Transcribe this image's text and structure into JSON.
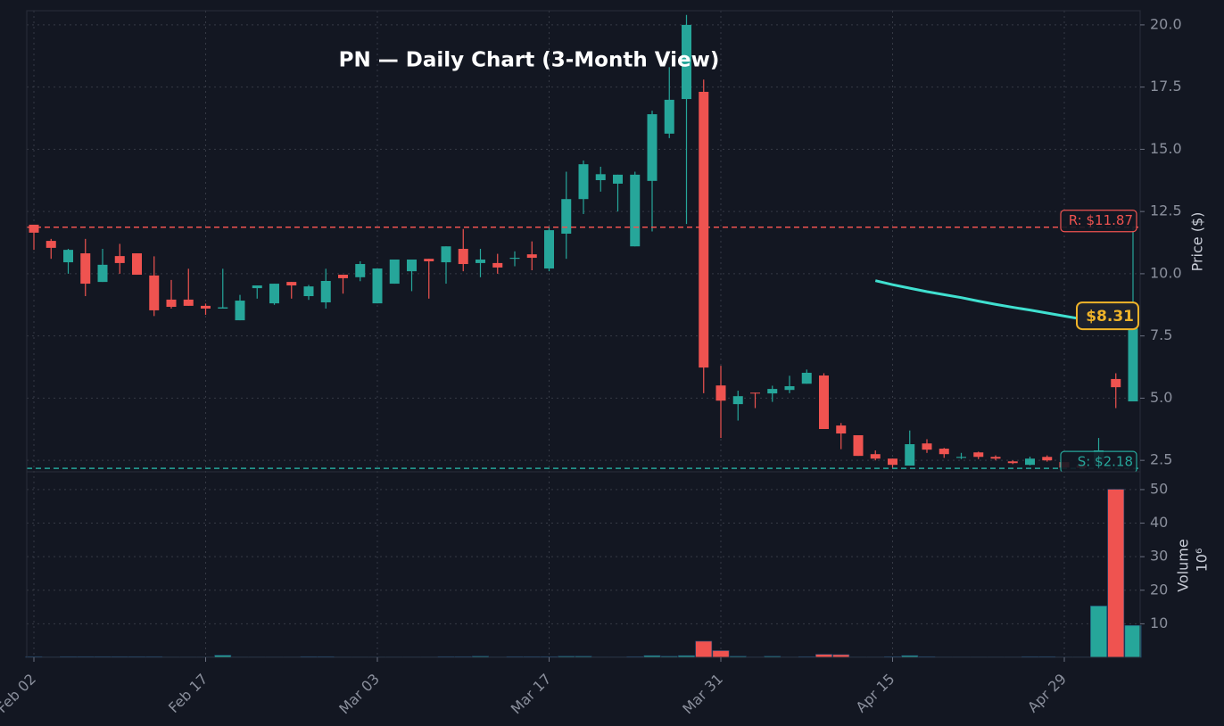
{
  "chart_data": {
    "type": "candlestick",
    "title": "PN — Daily Chart (3-Month View)",
    "y_label": "Price ($)",
    "categories": [
      "Feb 02",
      null,
      null,
      null,
      null,
      null,
      null,
      null,
      null,
      null,
      "Feb 17",
      null,
      null,
      null,
      null,
      null,
      null,
      null,
      null,
      null,
      "Mar 03",
      null,
      null,
      null,
      null,
      null,
      null,
      null,
      null,
      null,
      "Mar 17",
      null,
      null,
      null,
      null,
      null,
      null,
      null,
      null,
      null,
      "Mar 31",
      null,
      null,
      null,
      null,
      null,
      null,
      null,
      null,
      null,
      "Apr 15",
      null,
      null,
      null,
      null,
      null,
      null,
      null,
      null,
      null,
      "Apr 29",
      null,
      null,
      null,
      null
    ],
    "open": [
      11.97,
      11.32,
      10.46,
      10.82,
      9.67,
      10.71,
      10.82,
      9.93,
      8.96,
      8.96,
      8.71,
      8.6,
      8.13,
      9.42,
      8.81,
      9.67,
      9.1,
      8.85,
      9.96,
      9.86,
      8.81,
      9.6,
      10.1,
      10.6,
      10.46,
      11.0,
      10.43,
      10.43,
      10.6,
      10.78,
      10.21,
      11.61,
      13.0,
      13.76,
      13.62,
      11.1,
      13.73,
      15.63,
      17.02,
      17.31,
      5.51,
      4.76,
      5.22,
      5.19,
      5.33,
      5.58,
      5.91,
      3.9,
      3.51,
      2.75,
      2.57,
      2.29,
      3.18,
      2.97,
      2.6,
      2.82,
      2.64,
      2.46,
      2.32,
      2.64,
      2.43,
      2.3,
      2.36,
      5.77,
      4.87
    ],
    "high": [
      11.97,
      11.4,
      11.0,
      11.4,
      11.0,
      11.2,
      10.82,
      10.7,
      9.75,
      10.2,
      8.8,
      10.2,
      9.15,
      9.53,
      9.6,
      9.67,
      9.55,
      10.2,
      9.96,
      10.5,
      10.21,
      10.57,
      10.57,
      10.6,
      11.1,
      11.8,
      11.0,
      10.8,
      10.9,
      11.3,
      11.9,
      14.1,
      14.55,
      14.3,
      13.98,
      14.1,
      16.55,
      18.3,
      20.4,
      17.8,
      6.3,
      5.3,
      5.22,
      5.5,
      5.9,
      6.15,
      6.0,
      4.0,
      3.51,
      2.9,
      2.57,
      3.7,
      3.35,
      3.0,
      2.8,
      2.85,
      2.7,
      2.5,
      2.65,
      2.7,
      2.43,
      2.55,
      3.4,
      6.0,
      11.9
    ],
    "low": [
      10.96,
      10.6,
      10.0,
      9.1,
      9.67,
      10.0,
      9.96,
      8.3,
      8.6,
      8.71,
      8.35,
      8.6,
      8.13,
      9.0,
      8.75,
      9.0,
      8.95,
      8.6,
      9.2,
      9.7,
      8.81,
      9.6,
      9.3,
      9.0,
      9.6,
      10.1,
      9.86,
      10.0,
      10.3,
      10.14,
      10.1,
      10.6,
      12.4,
      13.3,
      12.5,
      11.1,
      11.7,
      15.45,
      12.0,
      5.2,
      3.4,
      4.1,
      4.6,
      4.85,
      5.2,
      5.58,
      3.76,
      2.95,
      2.68,
      2.5,
      2.2,
      2.29,
      2.8,
      2.6,
      2.55,
      2.55,
      2.5,
      2.35,
      2.3,
      2.45,
      2.18,
      2.18,
      2.2,
      4.6,
      4.87
    ],
    "close": [
      11.65,
      11.04,
      10.96,
      9.6,
      10.36,
      10.43,
      9.96,
      8.53,
      8.67,
      8.71,
      8.6,
      8.65,
      8.92,
      9.53,
      9.6,
      9.53,
      9.49,
      9.71,
      9.82,
      10.39,
      10.21,
      10.57,
      10.57,
      10.5,
      11.1,
      10.39,
      10.57,
      10.25,
      10.64,
      10.64,
      11.75,
      13.0,
      14.4,
      14.0,
      13.98,
      13.98,
      16.41,
      16.99,
      20.0,
      6.23,
      4.9,
      5.08,
      5.19,
      5.37,
      5.48,
      6.02,
      3.76,
      3.58,
      2.68,
      2.57,
      2.32,
      3.15,
      2.93,
      2.75,
      2.64,
      2.64,
      2.57,
      2.39,
      2.57,
      2.5,
      2.21,
      2.2,
      2.9,
      5.44,
      7.8
    ],
    "up_color": "#26a69a",
    "down_color": "#ef5350",
    "ylim": [
      2.04,
      20.57
    ],
    "yticks": [
      2.5,
      {
        "value": 5,
        "label": "5.0"
      },
      7.5,
      {
        "value": 10,
        "label": "10.0"
      },
      12.5,
      {
        "value": 15,
        "label": "15.0"
      },
      17.5,
      {
        "value": 20,
        "label": "20.0"
      }
    ],
    "grid": true,
    "lines": [
      {
        "color": "#40e0d0",
        "values": [
          null,
          null,
          null,
          null,
          null,
          null,
          null,
          null,
          null,
          null,
          null,
          null,
          null,
          null,
          null,
          null,
          null,
          null,
          null,
          null,
          null,
          null,
          null,
          null,
          null,
          null,
          null,
          null,
          null,
          null,
          null,
          null,
          null,
          null,
          null,
          null,
          null,
          null,
          null,
          null,
          null,
          null,
          null,
          null,
          null,
          null,
          null,
          null,
          null,
          9.72,
          9.56,
          9.42,
          9.28,
          9.16,
          9.04,
          8.9,
          8.77,
          8.65,
          8.54,
          8.42,
          8.3,
          8.18,
          7.95,
          null,
          null
        ]
      }
    ],
    "levels": [
      {
        "value": 11.87,
        "label": "R: $11.87",
        "color": "#ef5350"
      },
      {
        "value": 2.18,
        "label": "S: $2.18",
        "color": "#26a69a"
      }
    ],
    "price_tag": {
      "value": 8.31,
      "label": "$8.31",
      "color": "#f0b429"
    },
    "volume": {
      "label": "Volume",
      "scale_label": "10⁶",
      "values": [
        0.2,
        0.1,
        0.2,
        0.2,
        0.2,
        0.2,
        0.2,
        0.2,
        0.1,
        0.1,
        0.1,
        0.6,
        0.1,
        0.1,
        0.1,
        0.1,
        0.2,
        0.2,
        0.1,
        0.1,
        0.1,
        0.1,
        0.1,
        0.1,
        0.2,
        0.2,
        0.3,
        0.1,
        0.2,
        0.2,
        0.2,
        0.3,
        0.3,
        0.1,
        0.1,
        0.2,
        0.5,
        0.3,
        0.5,
        4.8,
        2.0,
        0.3,
        0.1,
        0.3,
        0.1,
        0.2,
        0.9,
        0.8,
        0.1,
        0.1,
        0.2,
        0.5,
        0.2,
        0.1,
        0.1,
        0.1,
        0.1,
        0.1,
        0.2,
        0.2,
        0.1,
        0.1,
        15.3,
        50.1,
        9.5
      ],
      "ylim": [
        0,
        55.3
      ],
      "yticks": [
        10,
        20,
        30,
        40,
        50
      ]
    }
  }
}
